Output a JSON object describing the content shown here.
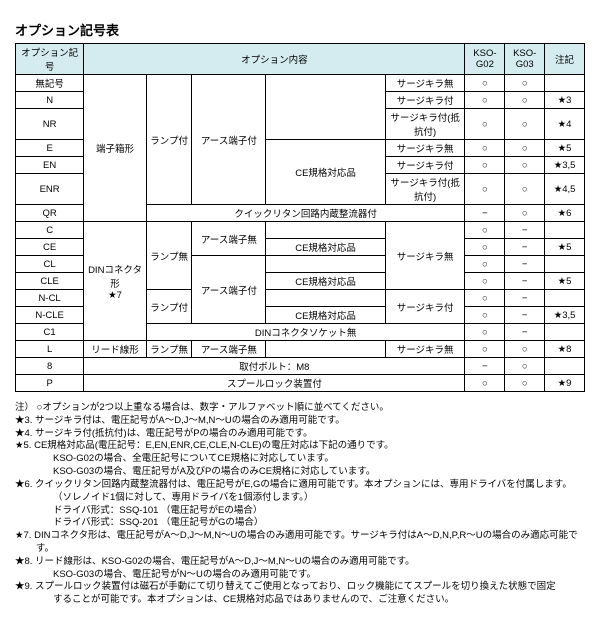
{
  "title": "オプション記号表",
  "headers": {
    "optionCode": "オプション記号",
    "optionContent": "オプション内容",
    "ksoG02": "KSO-G02",
    "ksoG03": "KSO-G03",
    "noteRef": "注記"
  },
  "groupLabels": {
    "terminalBox": "端子箱形",
    "dinConnector1": "DINコネクタ形",
    "dinConnectorNote": "★7",
    "leadWire": "リード線形",
    "lampOn": "ランプ付",
    "lampOff": "ランプ無",
    "earthOn": "アース端子付",
    "earthOff": "アース端子無",
    "ceCert": "CE規格対応品",
    "quickReturn": "クイックリタン回路内蔵整流器付",
    "dinSocketNone": "DINコネクタソケット無",
    "boltM8": "取付ボルト：M8",
    "spoolLock": "スプールロック装置付"
  },
  "surge": {
    "none": "サージキラ無",
    "on": "サージキラ付",
    "onRes": "サージキラ付(抵抗付)"
  },
  "rows": [
    {
      "code": "無記号",
      "g02": "○",
      "g03": "○",
      "note": ""
    },
    {
      "code": "N",
      "g02": "○",
      "g03": "○",
      "note": "★3"
    },
    {
      "code": "NR",
      "g02": "○",
      "g03": "○",
      "note": "★4"
    },
    {
      "code": "E",
      "g02": "○",
      "g03": "○",
      "note": "★5"
    },
    {
      "code": "EN",
      "g02": "○",
      "g03": "○",
      "note": "★3,5"
    },
    {
      "code": "ENR",
      "g02": "○",
      "g03": "○",
      "note": "★4,5"
    },
    {
      "code": "QR",
      "g02": "−",
      "g03": "○",
      "note": "★6"
    },
    {
      "code": "C",
      "g02": "○",
      "g03": "−",
      "note": ""
    },
    {
      "code": "CE",
      "g02": "○",
      "g03": "−",
      "note": "★5"
    },
    {
      "code": "CL",
      "g02": "○",
      "g03": "−",
      "note": ""
    },
    {
      "code": "CLE",
      "g02": "○",
      "g03": "−",
      "note": "★5"
    },
    {
      "code": "N-CL",
      "g02": "○",
      "g03": "−",
      "note": ""
    },
    {
      "code": "N-CLE",
      "g02": "○",
      "g03": "−",
      "note": "★3,5"
    },
    {
      "code": "C1",
      "g02": "○",
      "g03": "−",
      "note": ""
    },
    {
      "code": "L",
      "g02": "○",
      "g03": "○",
      "note": "★8"
    },
    {
      "code": "8",
      "g02": "−",
      "g03": "○",
      "note": ""
    },
    {
      "code": "P",
      "g02": "○",
      "g03": "○",
      "note": "★9"
    }
  ],
  "notes": [
    "注） ○オプションが2つ以上重なる場合は、数字・アルファベット順に並べてください。",
    "★3. サージキラ付は、電圧記号がA～D,J～M,N～Uの場合のみ適用可能です。",
    "★4. サージキラ付(抵抗付)は、電圧記号がPの場合のみ適用可能です。",
    "★5. CE規格対応品(電圧記号：E,EN,ENR,CE,CLE,N-CLE)の電圧対応は下記の通りです。",
    "KSO-G02の場合、全電圧記号についてCE規格に対応しています。",
    "KSO-G03の場合、電圧記号がA及びPの場合のみCE規格に対応しています。",
    "★6. クイックリタン回路内蔵整流器付は、電圧記号がE,Gの場合に適用可能です。本オプションには、専用ドライバを付属します。",
    "（ソレノイド1個に対して、専用ドライバを1個添付します。）",
    "ドライバ形式：SSQ-101 （電圧記号がEの場合）",
    "ドライバ形式：SSQ-201 （電圧記号がGの場合）",
    "★7. DINコネクタ形は、電圧記号がA～D,J～M,N～Uの場合のみ適用可能です。サージキラ付はA～D,N,P,R～Uの場合のみ適応可能です。",
    "★8. リード線形は、KSO-G02の場合、電圧記号がA～D,J～M,N～Uの場合のみ適用可能です。",
    "KSO-G03の場合、電圧記号がN～Uの場合のみ適用可能です。",
    "★9. スプールロック装置付は磁石が手動にて切り替えてご使用となっており、ロック機能にてスプールを切り換えた状態で固定",
    "することが可能です。本オプションは、CE規格対応品ではありませんので、ご注意ください。"
  ]
}
